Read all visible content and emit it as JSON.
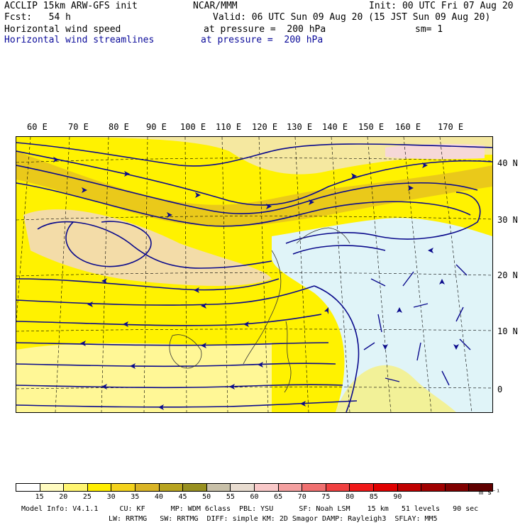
{
  "header": {
    "line1_left": "ACCLIP 15km ARW-GFS init",
    "line1_center": "NCAR/MMM",
    "line1_right": "Init: 00 UTC Fri 07 Aug 20",
    "line2_left": "Fcst:   54 h",
    "line2_right": "Valid: 06 UTC Sun 09 Aug 20 (15 JST Sun 09 Aug 20)",
    "field1_name": "Horizontal wind speed",
    "field1_level": "at pressure =  200 hPa",
    "field1_extra": "sm= 1",
    "field2_name": "Horizontal wind streamlines",
    "field2_level": "at pressure =  200 hPa"
  },
  "map": {
    "lon_labels": [
      "60 E",
      "70 E",
      "80 E",
      "90 E",
      "100 E",
      "110 E",
      "120 E",
      "130 E",
      "140 E",
      "150 E",
      "160 E",
      "170 E"
    ],
    "lat_labels": [
      "40 N",
      "30 N",
      "20 N",
      "10 N",
      "0"
    ]
  },
  "legend": {
    "colors": [
      "#ffffff",
      "#fffbc0",
      "#fff570",
      "#ffee00",
      "#f3d21c",
      "#d9b425",
      "#b8a420",
      "#989020",
      "#c8c0a8",
      "#e8dcd0",
      "#f8c8c8",
      "#f4a0a0",
      "#f07070",
      "#f04040",
      "#f01818",
      "#e00000",
      "#c00000",
      "#a00000",
      "#800000",
      "#600000"
    ],
    "ticks": [
      "15",
      "20",
      "25",
      "30",
      "35",
      "40",
      "45",
      "50",
      "55",
      "60",
      "65",
      "70",
      "75",
      "80",
      "85",
      "90"
    ],
    "unit": "m s⁻¹"
  },
  "footer": {
    "line1": "Model Info: V4.1.1     CU: KF      MP: WDM 6class  PBL: YSU      SF: Noah LSM    15 km   51 levels   90 sec",
    "line2": "LW: RRTMG   SW: RRTMG  DIFF: simple KM: 2D Smagor DAMP: Rayleigh3  SFLAY: MM5"
  }
}
